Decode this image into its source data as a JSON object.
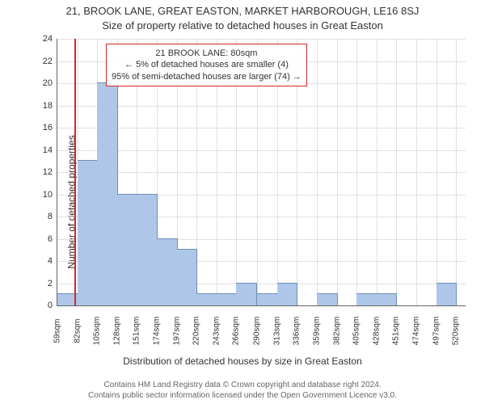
{
  "title": "21, BROOK LANE, GREAT EASTON, MARKET HARBOROUGH, LE16 8SJ",
  "subtitle": "Size of property relative to detached houses in Great Easton",
  "ylabel": "Number of detached properties",
  "xlabel": "Distribution of detached houses by size in Great Easton",
  "footer1": "Contains HM Land Registry data © Crown copyright and database right 2024.",
  "footer2": "Contains public sector information licensed under the Open Government Licence v3.0.",
  "chart": {
    "type": "histogram",
    "background_color": "#ffffff",
    "grid_color": "#e0e0e0",
    "axis_color": "#666666",
    "xlim": [
      59,
      531
    ],
    "ylim": [
      0,
      24
    ],
    "ytick_step": 2,
    "bar_color": "#aec7e8",
    "bar_border": "#6b8fb3",
    "bar_width_units": 23,
    "marker_color": "#d62728",
    "marker_x": 80,
    "title_fontsize": 13,
    "label_fontsize": 12,
    "tick_fontsize": 11,
    "xtick_fontsize": 10,
    "xtick_values": [
      59,
      82,
      105,
      128,
      151,
      174,
      197,
      220,
      243,
      266,
      290,
      313,
      336,
      359,
      382,
      405,
      428,
      451,
      474,
      497,
      520
    ],
    "xtick_labels": [
      "59sqm",
      "82sqm",
      "105sqm",
      "128sqm",
      "151sqm",
      "174sqm",
      "197sqm",
      "220sqm",
      "243sqm",
      "266sqm",
      "290sqm",
      "313sqm",
      "336sqm",
      "359sqm",
      "382sqm",
      "405sqm",
      "428sqm",
      "451sqm",
      "474sqm",
      "497sqm",
      "520sqm"
    ],
    "bars": [
      {
        "x": 59,
        "h": 1
      },
      {
        "x": 82,
        "h": 13
      },
      {
        "x": 105,
        "h": 20
      },
      {
        "x": 128,
        "h": 10
      },
      {
        "x": 151,
        "h": 10
      },
      {
        "x": 174,
        "h": 6
      },
      {
        "x": 197,
        "h": 5
      },
      {
        "x": 220,
        "h": 1
      },
      {
        "x": 243,
        "h": 1
      },
      {
        "x": 266,
        "h": 2
      },
      {
        "x": 290,
        "h": 1
      },
      {
        "x": 313,
        "h": 2
      },
      {
        "x": 359,
        "h": 1
      },
      {
        "x": 405,
        "h": 1
      },
      {
        "x": 428,
        "h": 1
      },
      {
        "x": 497,
        "h": 2
      }
    ],
    "annotation": {
      "line1": "21 BROOK LANE: 80sqm",
      "line2": "← 5% of detached houses are smaller (4)",
      "line3": "95% of semi-detached houses are larger (74) →",
      "border_color": "#d62728",
      "text_color": "#333333",
      "fontsize": 11
    }
  }
}
